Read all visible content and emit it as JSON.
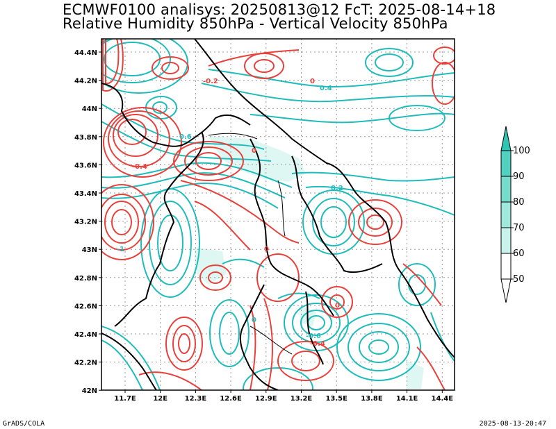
{
  "header": {
    "line1": "ECMWF0100 analisys: 20250813@12 FcT: 2025-08-14+18",
    "line2": "Relative Humidity 850hPa - Vertical Velocity 850hPa"
  },
  "footer": {
    "left": "GrADS/COLA",
    "right": "2025-08-13-20:47"
  },
  "axes": {
    "lat_labels": [
      "44.4N",
      "44.2N",
      "44N",
      "43.8N",
      "43.6N",
      "43.4N",
      "43.2N",
      "43N",
      "42.8N",
      "42.6N",
      "42.4N",
      "42.2N",
      "42N"
    ],
    "lon_labels": [
      "11.7E",
      "12E",
      "12.3E",
      "12.6E",
      "12.9E",
      "13.2E",
      "13.5E",
      "13.8E",
      "14.1E",
      "14.4E"
    ]
  },
  "colorbar": {
    "labels": [
      "100",
      "90",
      "80",
      "70",
      "60",
      "50"
    ],
    "colors": [
      "#2fc6b3",
      "#52d1c0",
      "#78dccd",
      "#a0e8dc",
      "#c8f3ec",
      "#ffffff"
    ]
  },
  "contour_labels": {
    "red": [
      "-0.2",
      "0",
      "0",
      "-0.4",
      "0",
      "0",
      "-0.4"
    ],
    "cyan": [
      "0.4",
      "0.6",
      "0.2",
      "0",
      "-0.6",
      "-1"
    ]
  },
  "colors": {
    "positive_contour": "#e8413c",
    "negative_contour": "#20bcbc",
    "coast": "#000000",
    "grid": "#9a9a9a"
  }
}
